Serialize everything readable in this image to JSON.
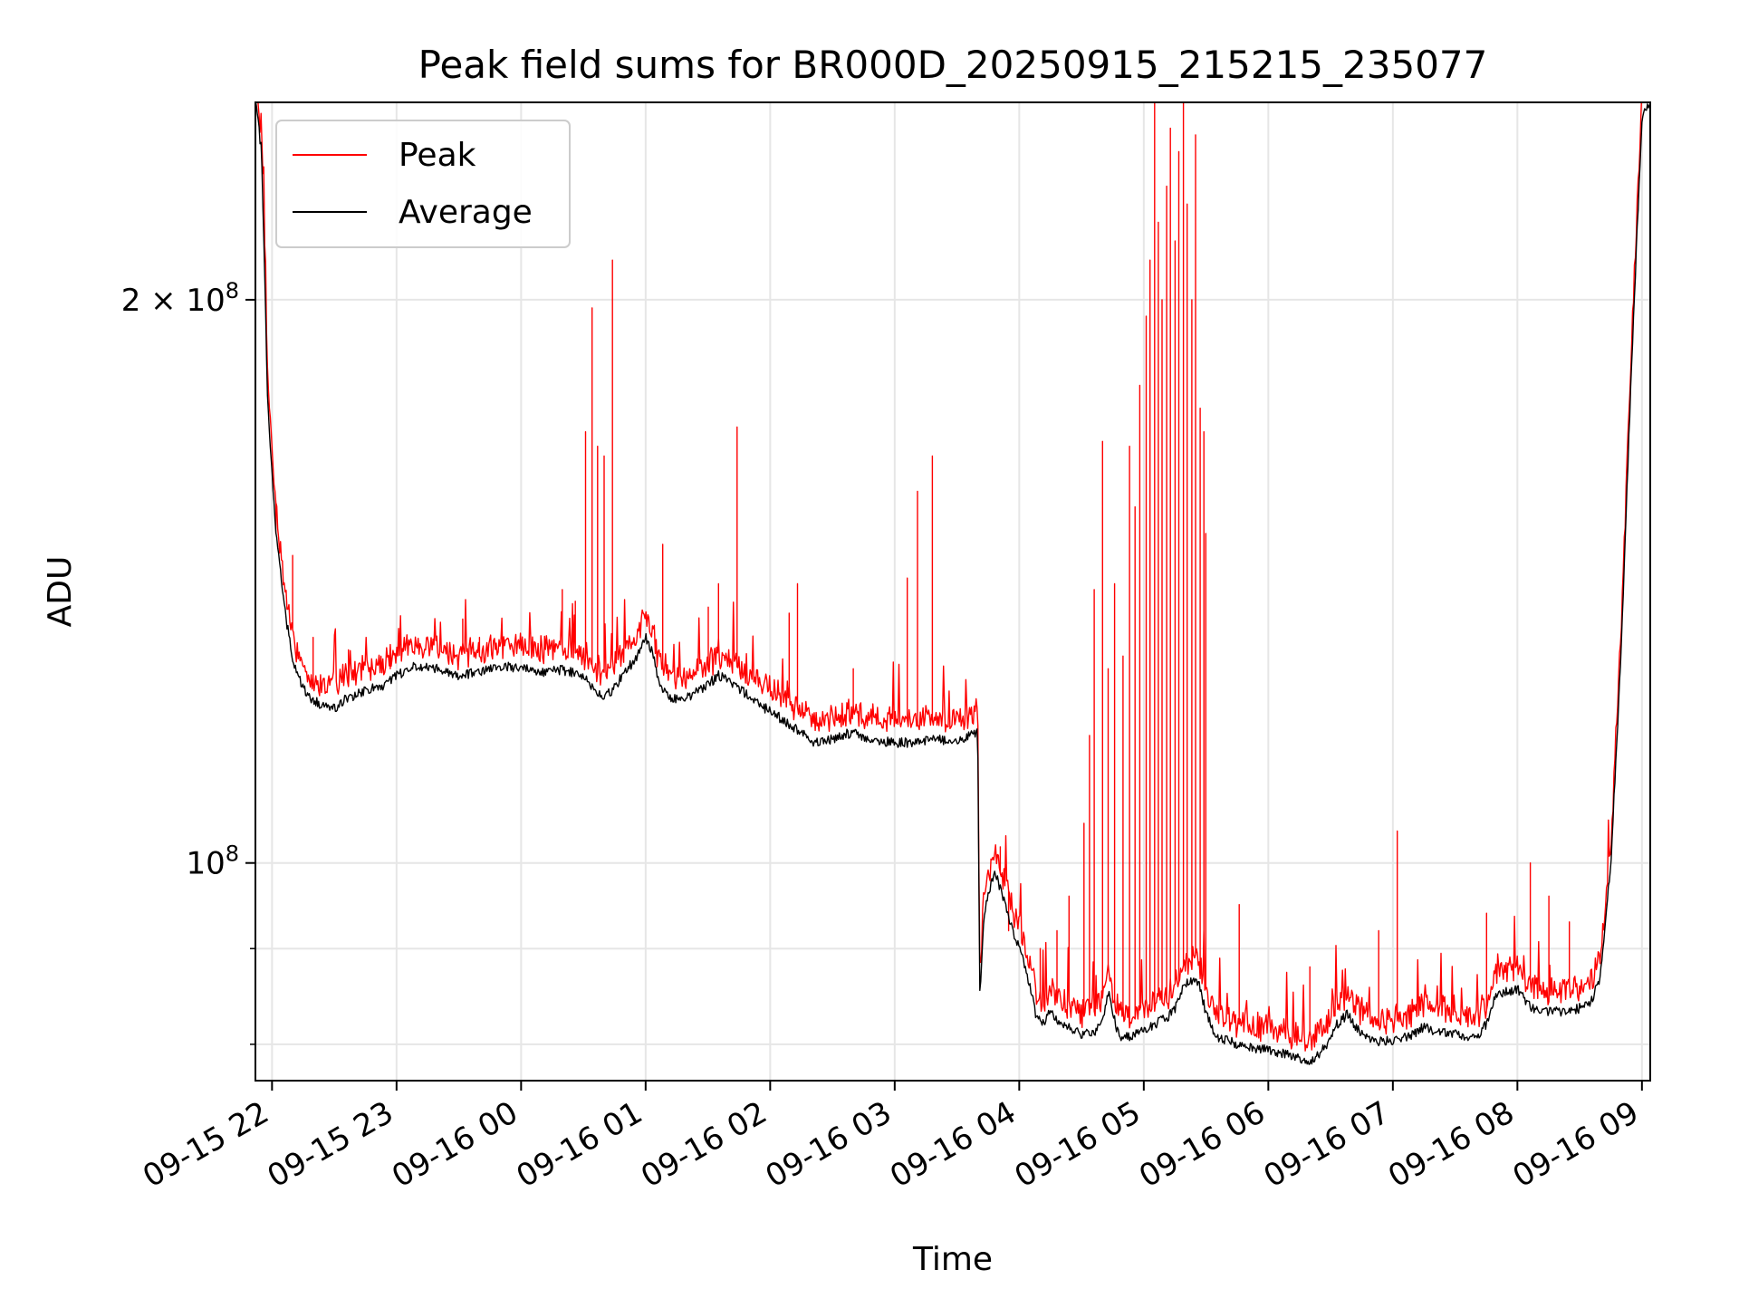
{
  "chart_data": {
    "type": "line",
    "title": "Peak field sums for BR000D_20250915_215215_235077",
    "xlabel": "Time",
    "ylabel": "ADU",
    "y_scale": "log",
    "ylim": [
      76500000,
      255000000
    ],
    "xlim": [
      "2025-09-15 21:52",
      "2025-09-16 09:04"
    ],
    "grid": true,
    "legend_position": "upper-left",
    "x_ticks": [
      {
        "t": "2025-09-15 22:00",
        "label": "09-15 22"
      },
      {
        "t": "2025-09-15 23:00",
        "label": "09-15 23"
      },
      {
        "t": "2025-09-16 00:00",
        "label": "09-16 00"
      },
      {
        "t": "2025-09-16 01:00",
        "label": "09-16 01"
      },
      {
        "t": "2025-09-16 02:00",
        "label": "09-16 02"
      },
      {
        "t": "2025-09-16 03:00",
        "label": "09-16 03"
      },
      {
        "t": "2025-09-16 04:00",
        "label": "09-16 04"
      },
      {
        "t": "2025-09-16 05:00",
        "label": "09-16 05"
      },
      {
        "t": "2025-09-16 06:00",
        "label": "09-16 06"
      },
      {
        "t": "2025-09-16 07:00",
        "label": "09-16 07"
      },
      {
        "t": "2025-09-16 08:00",
        "label": "09-16 08"
      },
      {
        "t": "2025-09-16 09:00",
        "label": "09-16 09"
      }
    ],
    "y_major_ticks": [
      {
        "v": 100000000,
        "base": "10",
        "exp": "8",
        "coef": ""
      },
      {
        "v": 200000000,
        "base": "10",
        "exp": "8",
        "coef": "2"
      }
    ],
    "y_minor_ticks": [
      80000000,
      90000000
    ],
    "series": [
      {
        "name": "Average",
        "color": "#000000",
        "points": [
          [
            "2025-09-15 21:52",
            255000000
          ],
          [
            "2025-09-15 21:55",
            240000000
          ],
          [
            "2025-09-15 21:58",
            175000000
          ],
          [
            "2025-09-15 22:02",
            150000000
          ],
          [
            "2025-09-15 22:06",
            137000000
          ],
          [
            "2025-09-15 22:10",
            128000000
          ],
          [
            "2025-09-15 22:15",
            124000000
          ],
          [
            "2025-09-15 22:20",
            122000000
          ],
          [
            "2025-09-15 22:25",
            121500000
          ],
          [
            "2025-09-15 22:30",
            121000000
          ],
          [
            "2025-09-15 22:35",
            122200000
          ],
          [
            "2025-09-15 22:40",
            123000000
          ],
          [
            "2025-09-15 22:45",
            123500000
          ],
          [
            "2025-09-15 22:50",
            124200000
          ],
          [
            "2025-09-15 22:55",
            124500000
          ],
          [
            "2025-09-15 23:00",
            126000000
          ],
          [
            "2025-09-15 23:10",
            127500000
          ],
          [
            "2025-09-15 23:20",
            127000000
          ],
          [
            "2025-09-15 23:30",
            126000000
          ],
          [
            "2025-09-15 23:40",
            126500000
          ],
          [
            "2025-09-15 23:50",
            127500000
          ],
          [
            "2025-09-16 00:00",
            127000000
          ],
          [
            "2025-09-16 00:10",
            126500000
          ],
          [
            "2025-09-16 00:20",
            126800000
          ],
          [
            "2025-09-16 00:30",
            126000000
          ],
          [
            "2025-09-16 00:35",
            124000000
          ],
          [
            "2025-09-16 00:40",
            122500000
          ],
          [
            "2025-09-16 00:45",
            124000000
          ],
          [
            "2025-09-16 00:50",
            126500000
          ],
          [
            "2025-09-16 00:55",
            128500000
          ],
          [
            "2025-09-16 01:00",
            132000000
          ],
          [
            "2025-09-16 01:03",
            130000000
          ],
          [
            "2025-09-16 01:07",
            124000000
          ],
          [
            "2025-09-16 01:12",
            122500000
          ],
          [
            "2025-09-16 01:20",
            122500000
          ],
          [
            "2025-09-16 01:30",
            124500000
          ],
          [
            "2025-09-16 01:35",
            126000000
          ],
          [
            "2025-09-16 01:45",
            124000000
          ],
          [
            "2025-09-16 01:55",
            121500000
          ],
          [
            "2025-09-16 02:05",
            119500000
          ],
          [
            "2025-09-16 02:15",
            117500000
          ],
          [
            "2025-09-16 02:20",
            116000000
          ],
          [
            "2025-09-16 02:30",
            116500000
          ],
          [
            "2025-09-16 02:40",
            117500000
          ],
          [
            "2025-09-16 02:45",
            116800000
          ],
          [
            "2025-09-16 02:50",
            116200000
          ],
          [
            "2025-09-16 03:00",
            116000000
          ],
          [
            "2025-09-16 03:10",
            115900000
          ],
          [
            "2025-09-16 03:20",
            116500000
          ],
          [
            "2025-09-16 03:30",
            116000000
          ],
          [
            "2025-09-16 03:37",
            117000000
          ],
          [
            "2025-09-16 03:40",
            117500000
          ],
          [
            "2025-09-16 03:41",
            85000000
          ],
          [
            "2025-09-16 03:43",
            94000000
          ],
          [
            "2025-09-16 03:48",
            99000000
          ],
          [
            "2025-09-16 03:52",
            96000000
          ],
          [
            "2025-09-16 03:57",
            92000000
          ],
          [
            "2025-09-16 04:03",
            88000000
          ],
          [
            "2025-09-16 04:08",
            83000000
          ],
          [
            "2025-09-16 04:12",
            82000000
          ],
          [
            "2025-09-16 04:15",
            83500000
          ],
          [
            "2025-09-16 04:20",
            82000000
          ],
          [
            "2025-09-16 04:25",
            81500000
          ],
          [
            "2025-09-16 04:30",
            81000000
          ],
          [
            "2025-09-16 04:35",
            81000000
          ],
          [
            "2025-09-16 04:40",
            82200000
          ],
          [
            "2025-09-16 04:43",
            85500000
          ],
          [
            "2025-09-16 04:47",
            81500000
          ],
          [
            "2025-09-16 04:50",
            80500000
          ],
          [
            "2025-09-16 04:55",
            81000000
          ],
          [
            "2025-09-16 05:00",
            81500000
          ],
          [
            "2025-09-16 05:05",
            82000000
          ],
          [
            "2025-09-16 05:10",
            82500000
          ],
          [
            "2025-09-16 05:15",
            83500000
          ],
          [
            "2025-09-16 05:18",
            85500000
          ],
          [
            "2025-09-16 05:22",
            86500000
          ],
          [
            "2025-09-16 05:27",
            86000000
          ],
          [
            "2025-09-16 05:30",
            83000000
          ],
          [
            "2025-09-16 05:35",
            80800000
          ],
          [
            "2025-09-16 05:45",
            80000000
          ],
          [
            "2025-09-16 05:55",
            79600000
          ],
          [
            "2025-09-16 06:05",
            79200000
          ],
          [
            "2025-09-16 06:15",
            78600000
          ],
          [
            "2025-09-16 06:22",
            78400000
          ],
          [
            "2025-09-16 06:28",
            80000000
          ],
          [
            "2025-09-16 06:33",
            82000000
          ],
          [
            "2025-09-16 06:38",
            83000000
          ],
          [
            "2025-09-16 06:43",
            81500000
          ],
          [
            "2025-09-16 06:50",
            80300000
          ],
          [
            "2025-09-16 07:00",
            80400000
          ],
          [
            "2025-09-16 07:10",
            81000000
          ],
          [
            "2025-09-16 07:15",
            81800000
          ],
          [
            "2025-09-16 07:20",
            81200000
          ],
          [
            "2025-09-16 07:30",
            81000000
          ],
          [
            "2025-09-16 07:40",
            80700000
          ],
          [
            "2025-09-16 07:45",
            82000000
          ],
          [
            "2025-09-16 07:50",
            85200000
          ],
          [
            "2025-09-16 08:00",
            85600000
          ],
          [
            "2025-09-16 08:07",
            83600000
          ],
          [
            "2025-09-16 08:15",
            83300000
          ],
          [
            "2025-09-16 08:25",
            83300000
          ],
          [
            "2025-09-16 08:35",
            84000000
          ],
          [
            "2025-09-16 08:40",
            87000000
          ],
          [
            "2025-09-16 08:45",
            100000000
          ],
          [
            "2025-09-16 08:50",
            130000000
          ],
          [
            "2025-09-16 08:55",
            185000000
          ],
          [
            "2025-09-16 09:00",
            250000000
          ],
          [
            "2025-09-16 09:04",
            255000000
          ]
        ]
      },
      {
        "name": "Peak",
        "color": "#ff0000",
        "spikes": [
          [
            "2025-09-15 22:02",
            150000000
          ],
          [
            "2025-09-15 22:10",
            146000000
          ],
          [
            "2025-09-15 22:20",
            132000000
          ],
          [
            "2025-09-15 22:37",
            130000000
          ],
          [
            "2025-09-15 22:57",
            127000000
          ],
          [
            "2025-09-15 23:02",
            134000000
          ],
          [
            "2025-09-15 23:32",
            135000000
          ],
          [
            "2025-09-15 23:40",
            132000000
          ],
          [
            "2025-09-16 00:08",
            131000000
          ],
          [
            "2025-09-16 00:20",
            140000000
          ],
          [
            "2025-09-16 00:26",
            138000000
          ],
          [
            "2025-09-16 00:31",
            170000000
          ],
          [
            "2025-09-16 00:34",
            198000000
          ],
          [
            "2025-09-16 00:37",
            167000000
          ],
          [
            "2025-09-16 00:40",
            165000000
          ],
          [
            "2025-09-16 00:44",
            210000000
          ],
          [
            "2025-09-16 01:08",
            148000000
          ],
          [
            "2025-09-16 01:30",
            137000000
          ],
          [
            "2025-09-16 01:35",
            141000000
          ],
          [
            "2025-09-16 01:44",
            171000000
          ],
          [
            "2025-09-16 02:09",
            136000000
          ],
          [
            "2025-09-16 02:13",
            141000000
          ],
          [
            "2025-09-16 02:40",
            127000000
          ],
          [
            "2025-09-16 03:06",
            142000000
          ],
          [
            "2025-09-16 03:11",
            158000000
          ],
          [
            "2025-09-16 03:18",
            165000000
          ],
          [
            "2025-09-16 03:51",
            102000000
          ],
          [
            "2025-09-16 03:55",
            92000000
          ],
          [
            "2025-09-16 04:10",
            90000000
          ],
          [
            "2025-09-16 04:18",
            92000000
          ],
          [
            "2025-09-16 04:24",
            96000000
          ],
          [
            "2025-09-16 04:31",
            105000000
          ],
          [
            "2025-09-16 04:34",
            117000000
          ],
          [
            "2025-09-16 04:36",
            140000000
          ],
          [
            "2025-09-16 04:40",
            168000000
          ],
          [
            "2025-09-16 04:43",
            127000000
          ],
          [
            "2025-09-16 04:46",
            141000000
          ],
          [
            "2025-09-16 04:50",
            129000000
          ],
          [
            "2025-09-16 04:53",
            167000000
          ],
          [
            "2025-09-16 04:56",
            155000000
          ],
          [
            "2025-09-16 04:58",
            180000000
          ],
          [
            "2025-09-16 05:01",
            196000000
          ],
          [
            "2025-09-16 05:03",
            210000000
          ],
          [
            "2025-09-16 05:05",
            255000000
          ],
          [
            "2025-09-16 05:07",
            220000000
          ],
          [
            "2025-09-16 05:09",
            200000000
          ],
          [
            "2025-09-16 05:11",
            230000000
          ],
          [
            "2025-09-16 05:13",
            247000000
          ],
          [
            "2025-09-16 05:15",
            215000000
          ],
          [
            "2025-09-16 05:17",
            240000000
          ],
          [
            "2025-09-16 05:19",
            255000000
          ],
          [
            "2025-09-16 05:21",
            225000000
          ],
          [
            "2025-09-16 05:23",
            200000000
          ],
          [
            "2025-09-16 05:25",
            245000000
          ],
          [
            "2025-09-16 05:27",
            175000000
          ],
          [
            "2025-09-16 05:29",
            170000000
          ],
          [
            "2025-09-16 05:30",
            150000000
          ],
          [
            "2025-09-16 05:46",
            95000000
          ],
          [
            "2025-09-16 06:20",
            88000000
          ],
          [
            "2025-09-16 06:53",
            92000000
          ],
          [
            "2025-09-16 07:02",
            104000000
          ],
          [
            "2025-09-16 07:45",
            94000000
          ],
          [
            "2025-09-16 08:06",
            100000000
          ],
          [
            "2025-09-16 08:15",
            96000000
          ],
          [
            "2025-09-16 08:25",
            93000000
          ]
        ]
      }
    ]
  }
}
